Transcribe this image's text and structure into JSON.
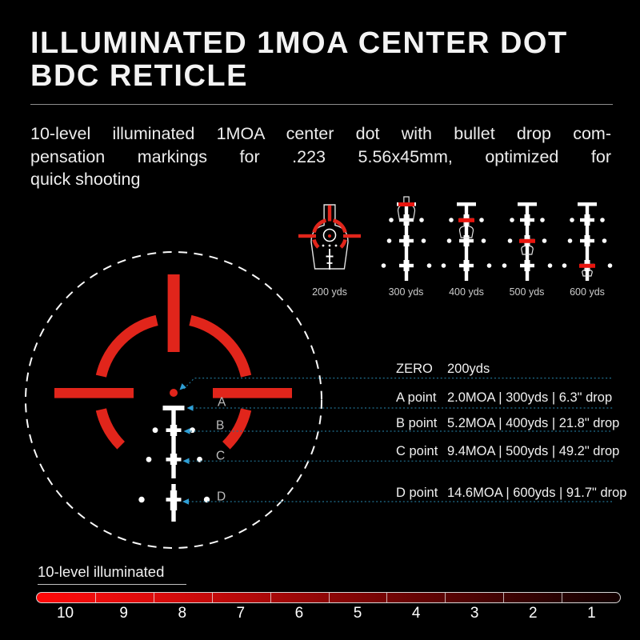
{
  "title": {
    "line1": "ILLUMINATED 1MOA CENTER DOT",
    "line2": "BDC RETICLE"
  },
  "description": {
    "lines": [
      "10-level illuminated 1MOA center dot with bullet drop com-",
      "pensation markings for .223 5.56x45mm, optimized for",
      "quick shooting"
    ]
  },
  "range_previews": [
    {
      "label": "200 yds",
      "type": "red_reticle"
    },
    {
      "label": "300 yds",
      "type": "ladder",
      "hold_index": 0
    },
    {
      "label": "400 yds",
      "type": "ladder",
      "hold_index": 1
    },
    {
      "label": "500 yds",
      "type": "ladder",
      "hold_index": 2
    },
    {
      "label": "600 yds",
      "type": "ladder",
      "hold_index": 3
    }
  ],
  "bdc_table": {
    "zero_label": "ZERO",
    "zero_value": "200yds",
    "points": [
      {
        "marker": "A",
        "label": "A point",
        "value": "2.0MOA | 300yds | 6.3\" drop"
      },
      {
        "marker": "B",
        "label": "B point",
        "value": "5.2MOA | 400yds | 21.8\" drop"
      },
      {
        "marker": "C",
        "label": "C point",
        "value": "9.4MOA | 500yds | 49.2\" drop"
      },
      {
        "marker": "D",
        "label": "D point",
        "value": "14.6MOA | 600yds | 91.7\" drop"
      }
    ]
  },
  "illumination": {
    "label": "10-level illuminated",
    "levels": [
      "10",
      "9",
      "8",
      "7",
      "6",
      "5",
      "4",
      "3",
      "2",
      "1"
    ]
  },
  "colors": {
    "reticle_red": "#e1251b",
    "highlight_red": "#e8150e",
    "leader_line": "#20708f",
    "leader_arrow": "#2f9fd6",
    "gradient_start": "#ff0808",
    "gradient_end": "#120000"
  }
}
